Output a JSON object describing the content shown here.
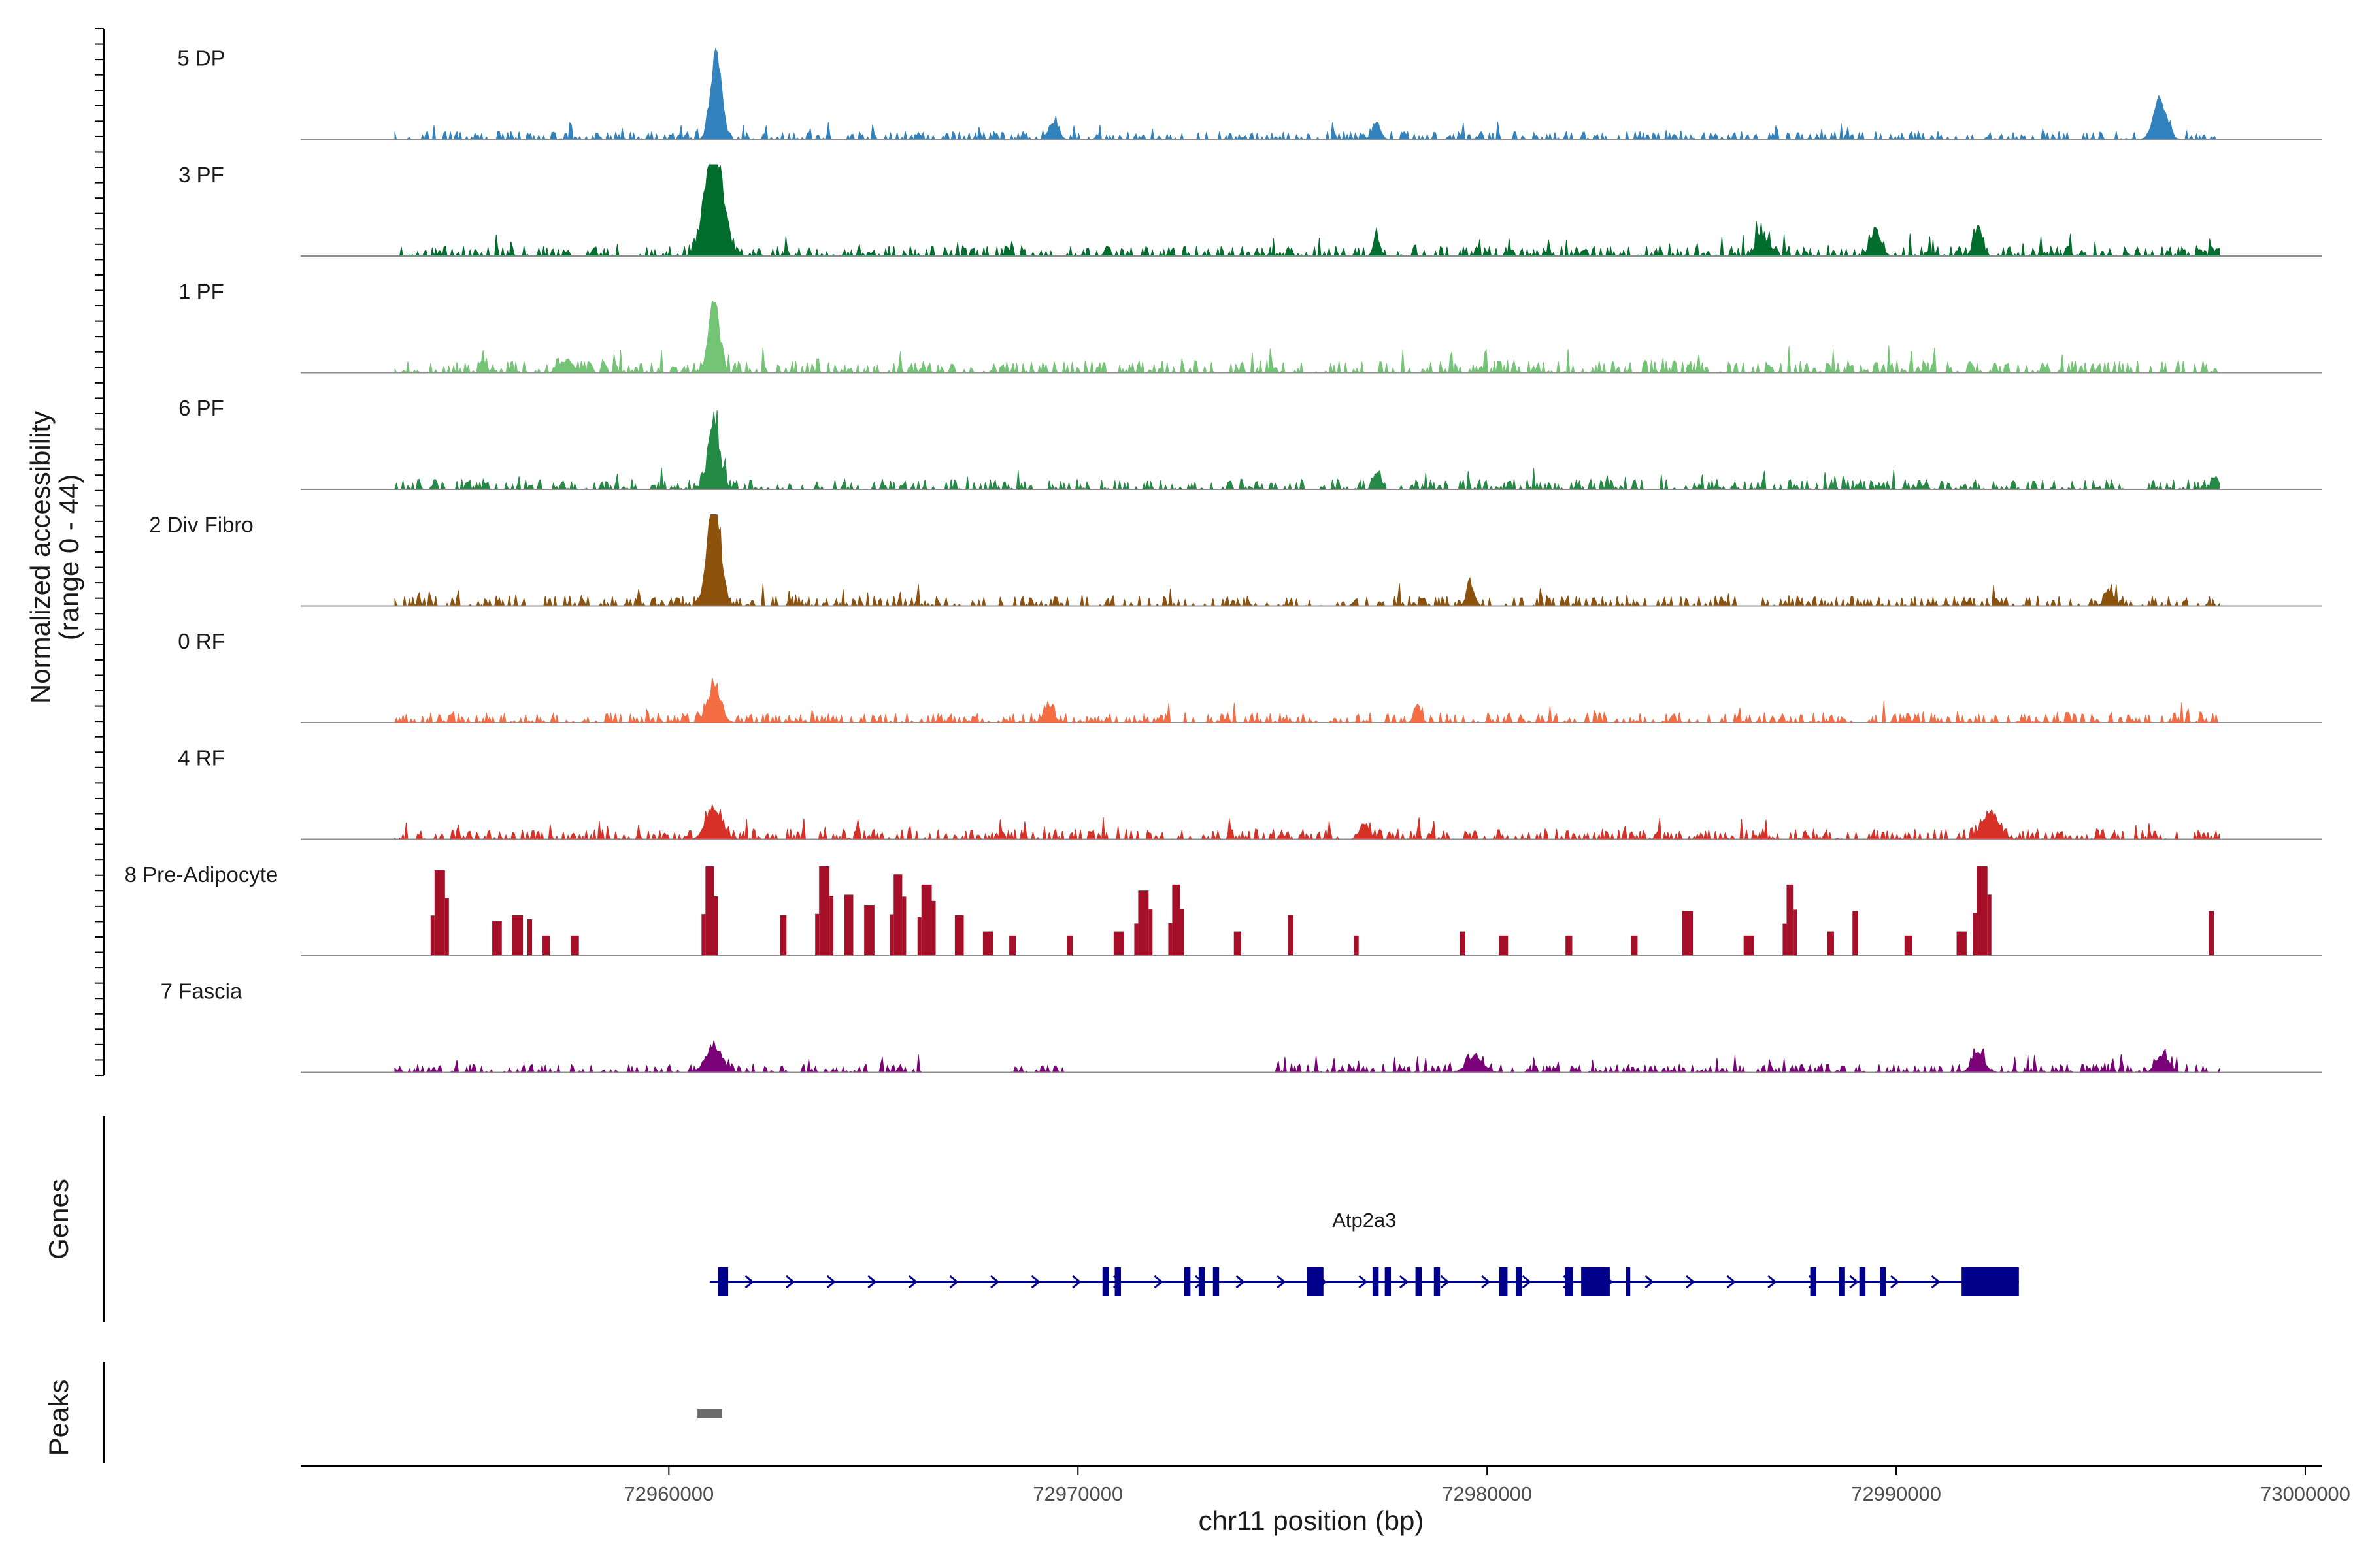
{
  "chart_data": {
    "type": "area",
    "title": "",
    "ylabel": "Normalized accessibility",
    "ylabel_range": "(range 0 - 44)",
    "xlabel": "chr11 position (bp)",
    "xlim": [
      72951000,
      73000400
    ],
    "ylim": [
      0,
      44
    ],
    "x_ticks": [
      72960000,
      72970000,
      72980000,
      72990000,
      73000000
    ],
    "x_tick_labels": [
      "72960000",
      "72970000",
      "72980000",
      "72990000",
      "73000000"
    ],
    "region_start": 72953300,
    "region_end": 72997900,
    "tracks": [
      {
        "name": "5 DP",
        "color": "#3182bd",
        "peaks": [
          [
            72961150,
            44,
            130
          ],
          [
            72996450,
            20,
            160
          ],
          [
            72969400,
            9,
            120
          ],
          [
            72977300,
            9,
            100
          ]
        ],
        "noise": 4
      },
      {
        "name": "3 PF",
        "color": "#006d2c",
        "peaks": [
          [
            72961100,
            62,
            210
          ],
          [
            72986700,
            12,
            120
          ],
          [
            72989500,
            13,
            130
          ],
          [
            72992000,
            15,
            100
          ],
          [
            72977300,
            10,
            80
          ]
        ],
        "noise": 5
      },
      {
        "name": "1 PF",
        "color": "#74c476",
        "peaks": [
          [
            72961100,
            38,
            130
          ],
          [
            72957500,
            7,
            160
          ]
        ],
        "noise": 6
      },
      {
        "name": "6 PF",
        "color": "#238b45",
        "peaks": [
          [
            72961100,
            36,
            140
          ],
          [
            72977300,
            10,
            80
          ],
          [
            72997800,
            7,
            80
          ]
        ],
        "noise": 5
      },
      {
        "name": "2 Div Fibro",
        "color": "#8c510a",
        "peaks": [
          [
            72961100,
            60,
            150
          ],
          [
            72979600,
            9,
            100
          ],
          [
            72995200,
            9,
            100
          ]
        ],
        "noise": 5
      },
      {
        "name": "0 RF",
        "color": "#f46d43",
        "peaks": [
          [
            72961100,
            19,
            160
          ],
          [
            72978300,
            10,
            80
          ],
          [
            72969300,
            8,
            120
          ]
        ],
        "noise": 5
      },
      {
        "name": "4 RF",
        "color": "#d73027",
        "peaks": [
          [
            72961100,
            18,
            180
          ],
          [
            72992300,
            15,
            200
          ],
          [
            72977000,
            8,
            120
          ]
        ],
        "noise": 5
      },
      {
        "name": "8 Pre-Adipocyte",
        "color": "#a50f28",
        "bars": [
          [
            72954400,
            42
          ],
          [
            72955800,
            17
          ],
          [
            72956300,
            20
          ],
          [
            72956600,
            18
          ],
          [
            72957000,
            10
          ],
          [
            72957700,
            10
          ],
          [
            72961000,
            50
          ],
          [
            72962800,
            20
          ],
          [
            72963800,
            52
          ],
          [
            72964400,
            30
          ],
          [
            72964900,
            25
          ],
          [
            72965600,
            40
          ],
          [
            72966300,
            35
          ],
          [
            72967100,
            20
          ],
          [
            72967800,
            12
          ],
          [
            72968400,
            10
          ],
          [
            72969800,
            10
          ],
          [
            72971000,
            12
          ],
          [
            72971600,
            32
          ],
          [
            72972400,
            35
          ],
          [
            72973900,
            12
          ],
          [
            72975200,
            20
          ],
          [
            72976800,
            10
          ],
          [
            72979400,
            12
          ],
          [
            72980400,
            10
          ],
          [
            72982000,
            10
          ],
          [
            72983600,
            10
          ],
          [
            72984900,
            22
          ],
          [
            72986400,
            10
          ],
          [
            72987400,
            35
          ],
          [
            72988400,
            12
          ],
          [
            72989000,
            22
          ],
          [
            72990300,
            10
          ],
          [
            72991600,
            12
          ],
          [
            72992100,
            60
          ],
          [
            72997700,
            22
          ]
        ]
      },
      {
        "name": "7 Fascia",
        "color": "#7a0177",
        "peaks": [
          [
            72961100,
            14,
            200
          ],
          [
            72992000,
            10,
            150
          ],
          [
            72996500,
            10,
            150
          ],
          [
            72979700,
            8,
            200
          ]
        ],
        "noise": 4,
        "gaps": [
          [
            72962900,
            72963200
          ],
          [
            72966200,
            72968300
          ],
          [
            72969700,
            72974800
          ]
        ]
      }
    ],
    "genes_label": "Genes",
    "gene": {
      "name": "Atp2a3",
      "strand": "+",
      "start": 72961000,
      "end": 72993000,
      "color": "#00008b",
      "exons": [
        [
          72961200,
          72961450,
          "tall"
        ],
        [
          72970600,
          72970750,
          "tall"
        ],
        [
          72970900,
          72971050,
          "tall"
        ],
        [
          72972600,
          72972750,
          "tall"
        ],
        [
          72972950,
          72973100,
          "tall"
        ],
        [
          72973300,
          72973450,
          "tall"
        ],
        [
          72975600,
          72976000,
          "tall"
        ],
        [
          72977200,
          72977350,
          "tall"
        ],
        [
          72977500,
          72977650,
          "tall"
        ],
        [
          72978250,
          72978400,
          "tall"
        ],
        [
          72978700,
          72978850,
          "tall"
        ],
        [
          72980300,
          72980500,
          "tall"
        ],
        [
          72980700,
          72980850,
          "tall"
        ],
        [
          72981900,
          72982100,
          "tall"
        ],
        [
          72982300,
          72983000,
          "tall"
        ],
        [
          72983400,
          72983500,
          "tall"
        ],
        [
          72987900,
          72988050,
          "tall"
        ],
        [
          72988600,
          72988750,
          "tall"
        ],
        [
          72989100,
          72989250,
          "tall"
        ],
        [
          72989600,
          72989750,
          "tall"
        ],
        [
          72991600,
          72993000,
          "tall"
        ]
      ]
    },
    "peaks_label": "Peaks",
    "peak_regions": [
      [
        72960700,
        72961300
      ]
    ]
  }
}
